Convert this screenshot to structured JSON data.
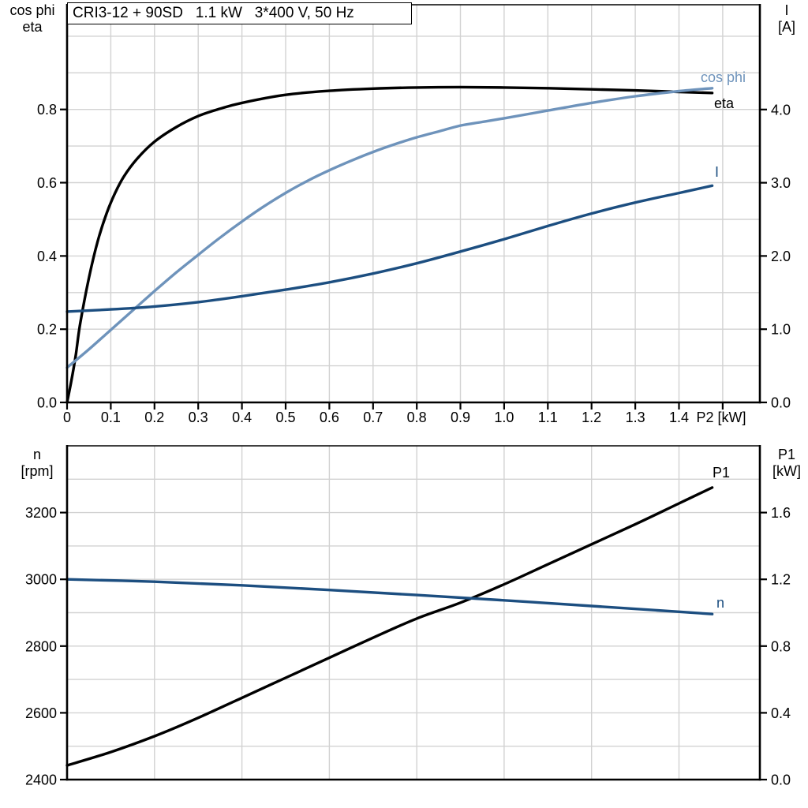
{
  "title_box": {
    "text": "CRI3-12 + 90SD   1.1 kW   3*400 V, 50 Hz"
  },
  "colors": {
    "axis": "#000000",
    "grid": "#d2d2d2",
    "tick_text": "#000000",
    "black_curve": "#000000",
    "light_blue": "#6E93BB",
    "dark_blue": "#1C4E80"
  },
  "chart_data": [
    {
      "id": "top",
      "type": "line",
      "title": "Motor efficiency, power factor and current vs shaft power",
      "left_header": [
        "cos phi",
        "eta"
      ],
      "right_header": [
        "I",
        "[A]"
      ],
      "x_axis": {
        "label": "P2 [kW]",
        "min": 0,
        "max": 1.585,
        "grid_step": 0.1,
        "grid_max": 1.5,
        "tick_step": 0.1,
        "tick_max": 1.5,
        "tick_labels": [
          "0",
          "0.1",
          "0.2",
          "0.3",
          "0.4",
          "0.5",
          "0.6",
          "0.7",
          "0.8",
          "0.9",
          "1.0",
          "1.1",
          "1.2",
          "1.3",
          "1.4"
        ]
      },
      "left_axis": {
        "min": 0,
        "max": 1.086,
        "grid_step": 0.1,
        "tick_values": [
          0.0,
          0.2,
          0.4,
          0.6,
          0.8
        ],
        "tick_labels": [
          "0.0",
          "0.2",
          "0.4",
          "0.6",
          "0.8"
        ]
      },
      "right_axis": {
        "min": 0,
        "max": 5.431,
        "tick_values": [
          0.0,
          1.0,
          2.0,
          3.0,
          4.0
        ],
        "tick_labels": [
          "0.0",
          "1.0",
          "2.0",
          "3.0",
          "4.0"
        ]
      },
      "grid": true,
      "series": [
        {
          "name": "eta",
          "axis": "left",
          "color": "#000000",
          "label": {
            "text": "eta",
            "x": 905,
            "y": 137,
            "color": "#000000"
          },
          "points": [
            [
              0,
              0
            ],
            [
              0.01,
              0.06
            ],
            [
              0.02,
              0.13
            ],
            [
              0.03,
              0.215
            ],
            [
              0.05,
              0.34
            ],
            [
              0.07,
              0.44
            ],
            [
              0.09,
              0.515
            ],
            [
              0.11,
              0.572
            ],
            [
              0.13,
              0.617
            ],
            [
              0.16,
              0.665
            ],
            [
              0.2,
              0.712
            ],
            [
              0.25,
              0.752
            ],
            [
              0.3,
              0.782
            ],
            [
              0.35,
              0.802
            ],
            [
              0.4,
              0.818
            ],
            [
              0.5,
              0.84
            ],
            [
              0.6,
              0.851
            ],
            [
              0.7,
              0.857
            ],
            [
              0.8,
              0.86
            ],
            [
              0.9,
              0.861
            ],
            [
              1.0,
              0.86
            ],
            [
              1.1,
              0.858
            ],
            [
              1.2,
              0.855
            ],
            [
              1.3,
              0.852
            ],
            [
              1.4,
              0.848
            ],
            [
              1.476,
              0.845
            ]
          ]
        },
        {
          "name": "cos phi",
          "axis": "left",
          "color": "#6E93BB",
          "label": {
            "text": "cos phi",
            "x": 888,
            "y": 104,
            "color": "#6E93BB"
          },
          "points": [
            [
              0,
              0.095
            ],
            [
              0.05,
              0.145
            ],
            [
              0.1,
              0.198
            ],
            [
              0.15,
              0.251
            ],
            [
              0.2,
              0.304
            ],
            [
              0.25,
              0.355
            ],
            [
              0.3,
              0.403
            ],
            [
              0.35,
              0.45
            ],
            [
              0.4,
              0.494
            ],
            [
              0.45,
              0.535
            ],
            [
              0.5,
              0.572
            ],
            [
              0.55,
              0.605
            ],
            [
              0.6,
              0.634
            ],
            [
              0.65,
              0.66
            ],
            [
              0.7,
              0.684
            ],
            [
              0.75,
              0.705
            ],
            [
              0.8,
              0.724
            ],
            [
              0.85,
              0.74
            ],
            [
              0.9,
              0.756
            ],
            [
              0.95,
              0.766
            ],
            [
              1.0,
              0.776
            ],
            [
              1.1,
              0.797
            ],
            [
              1.2,
              0.818
            ],
            [
              1.3,
              0.836
            ],
            [
              1.4,
              0.85
            ],
            [
              1.476,
              0.858
            ]
          ]
        },
        {
          "name": "I",
          "axis": "right",
          "color": "#1C4E80",
          "label": {
            "text": "I",
            "x": 906,
            "y": 224,
            "color": "#1C4E80"
          },
          "points": [
            [
              0,
              1.24
            ],
            [
              0.1,
              1.27
            ],
            [
              0.2,
              1.31
            ],
            [
              0.3,
              1.37
            ],
            [
              0.4,
              1.45
            ],
            [
              0.5,
              1.54
            ],
            [
              0.6,
              1.64
            ],
            [
              0.7,
              1.76
            ],
            [
              0.8,
              1.9
            ],
            [
              0.9,
              2.06
            ],
            [
              1.0,
              2.23
            ],
            [
              1.1,
              2.41
            ],
            [
              1.2,
              2.58
            ],
            [
              1.3,
              2.73
            ],
            [
              1.4,
              2.86
            ],
            [
              1.476,
              2.96
            ]
          ]
        }
      ]
    },
    {
      "id": "bottom",
      "type": "line",
      "title": "Motor speed and input power vs shaft power",
      "left_header": [
        "n",
        "[rpm]"
      ],
      "right_header": [
        "P1",
        "[kW]"
      ],
      "x_axis": {
        "label": "",
        "min": 0,
        "max": 1.585,
        "grid_step": 0.2,
        "grid_max": 1.4,
        "tick_step": 0,
        "tick_max": 0,
        "tick_labels": []
      },
      "left_axis": {
        "min": 2400,
        "max": 3400,
        "grid_step": 100,
        "tick_values": [
          2400,
          2600,
          2800,
          3000,
          3200
        ],
        "tick_labels": [
          "2400",
          "2600",
          "2800",
          "3000",
          "3200"
        ]
      },
      "right_axis": {
        "min": 0,
        "max": 2.0,
        "tick_values": [
          0.0,
          0.4,
          0.8,
          1.2,
          1.6
        ],
        "tick_labels": [
          "0.0",
          "0.4",
          "0.8",
          "1.2",
          "1.6"
        ]
      },
      "grid": true,
      "series": [
        {
          "name": "P1",
          "axis": "right",
          "color": "#000000",
          "label": {
            "text": "P1",
            "x": 903,
            "y": 605,
            "color": "#000000"
          },
          "points": [
            [
              0,
              0.085
            ],
            [
              0.1,
              0.165
            ],
            [
              0.2,
              0.26
            ],
            [
              0.3,
              0.37
            ],
            [
              0.4,
              0.49
            ],
            [
              0.5,
              0.61
            ],
            [
              0.6,
              0.73
            ],
            [
              0.7,
              0.85
            ],
            [
              0.8,
              0.965
            ],
            [
              0.9,
              1.06
            ],
            [
              1.0,
              1.17
            ],
            [
              1.1,
              1.29
            ],
            [
              1.2,
              1.41
            ],
            [
              1.3,
              1.53
            ],
            [
              1.4,
              1.655
            ],
            [
              1.476,
              1.75
            ]
          ]
        },
        {
          "name": "n",
          "axis": "left",
          "color": "#1C4E80",
          "label": {
            "text": "n",
            "x": 908,
            "y": 770,
            "color": "#1C4E80"
          },
          "points": [
            [
              0,
              3000
            ],
            [
              0.2,
              2993
            ],
            [
              0.4,
              2982
            ],
            [
              0.6,
              2968
            ],
            [
              0.8,
              2953
            ],
            [
              1.0,
              2937
            ],
            [
              1.2,
              2920
            ],
            [
              1.35,
              2907
            ],
            [
              1.476,
              2896
            ]
          ]
        }
      ]
    }
  ]
}
